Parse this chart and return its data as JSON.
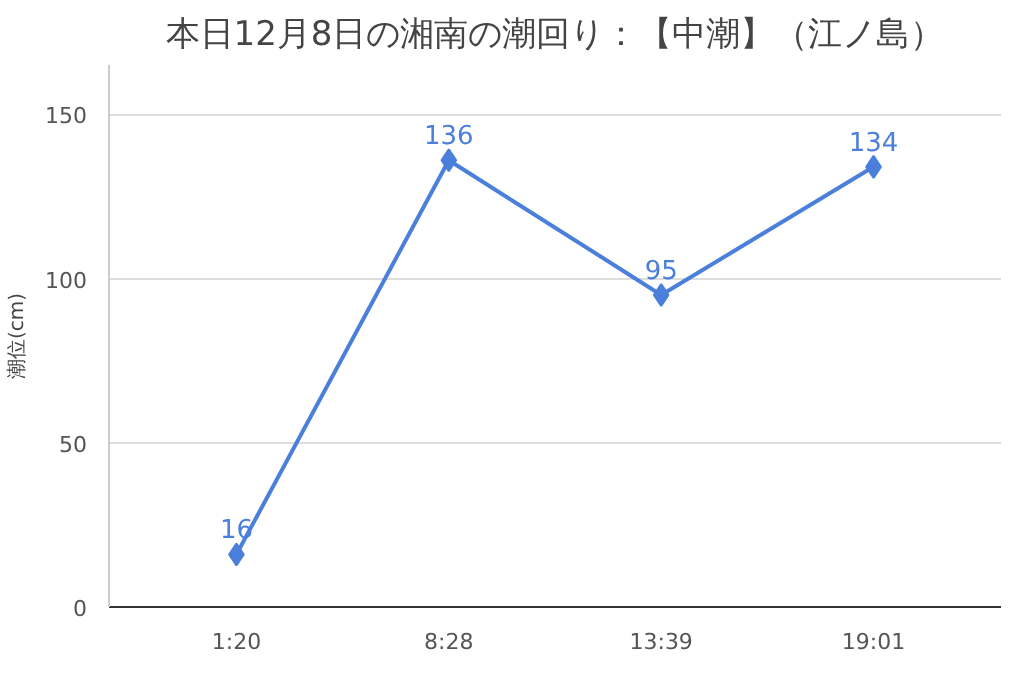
{
  "chart_data": {
    "type": "line",
    "title": "本日12月8日の湘南の潮回り：【中潮】（江ノ島）",
    "ylabel": "潮位(cm)",
    "categories": [
      "1:20",
      "8:28",
      "13:39",
      "19:01"
    ],
    "series": [
      {
        "color": "#4a7fdb",
        "values": [
          16,
          136,
          95,
          134
        ]
      }
    ],
    "ylim": [
      0,
      165
    ],
    "yticks": [
      0,
      50,
      100,
      150
    ],
    "grid": "y",
    "marker": "diamond",
    "line_style": "solid",
    "data_labels": true
  }
}
